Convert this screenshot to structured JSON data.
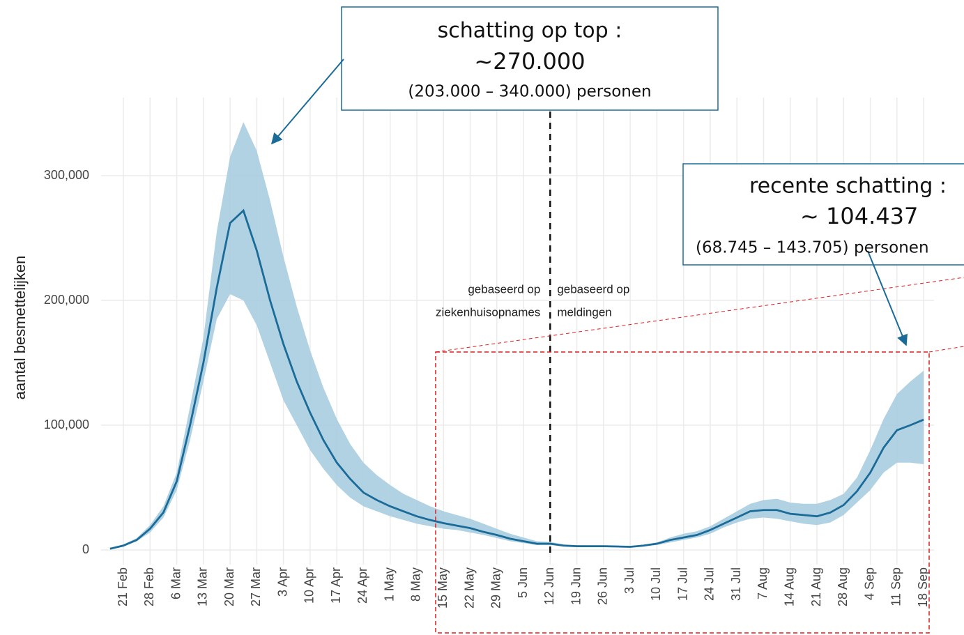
{
  "chart_data": {
    "type": "line",
    "ylabel": "aantal besmettelijken",
    "categories": [
      null,
      "21 Feb",
      null,
      "28 Feb",
      null,
      "6 Mar",
      null,
      "13 Mar",
      null,
      "20 Mar",
      null,
      "27 Mar",
      null,
      "3 Apr",
      null,
      "10 Apr",
      null,
      "17 Apr",
      null,
      "24 Apr",
      null,
      "1 May",
      null,
      "8 May",
      null,
      "15 May",
      null,
      "22 May",
      null,
      "29 May",
      null,
      "5 Jun",
      null,
      "12 Jun",
      null,
      "19 Jun",
      null,
      "26 Jun",
      null,
      "3 Jul",
      null,
      "10 Jul",
      null,
      "17 Jul",
      null,
      "24 Jul",
      null,
      "31 Jul",
      null,
      "7 Aug",
      null,
      "14 Aug",
      null,
      "21 Aug",
      null,
      "28 Aug",
      null,
      "4 Sep",
      null,
      "11 Sep",
      null,
      "18 Sep"
    ],
    "values": [
      1000,
      3500,
      8000,
      17000,
      30000,
      55000,
      100000,
      150000,
      210000,
      262000,
      272000,
      240000,
      200000,
      165000,
      135000,
      110000,
      88000,
      70000,
      57000,
      46000,
      40000,
      35000,
      31000,
      27000,
      24000,
      21500,
      19500,
      17500,
      14500,
      12000,
      9000,
      7000,
      5000,
      5000,
      3500,
      3000,
      3000,
      3000,
      2800,
      2500,
      3500,
      5000,
      8000,
      10000,
      12000,
      16000,
      21000,
      26000,
      31000,
      32000,
      32000,
      29000,
      28000,
      27000,
      30000,
      36000,
      47000,
      62000,
      82000,
      96000,
      100000,
      104437
    ],
    "lower": [
      800,
      3000,
      7000,
      14000,
      26000,
      48000,
      88000,
      135000,
      185000,
      205000,
      200000,
      180000,
      150000,
      120000,
      100000,
      80000,
      65000,
      52000,
      42000,
      35000,
      31000,
      27000,
      24000,
      21000,
      19000,
      17000,
      16000,
      14000,
      12000,
      9500,
      7000,
      5500,
      4000,
      4000,
      3000,
      2500,
      2500,
      2500,
      2400,
      2200,
      3000,
      4000,
      6000,
      8000,
      10000,
      13000,
      18000,
      22000,
      25000,
      26000,
      25000,
      23000,
      21000,
      20000,
      22000,
      28000,
      38000,
      48000,
      62000,
      70000,
      70000,
      68745
    ],
    "upper": [
      1200,
      4500,
      9500,
      20000,
      35000,
      62000,
      115000,
      170000,
      255000,
      315000,
      343000,
      320000,
      280000,
      235000,
      195000,
      160000,
      130000,
      105000,
      85000,
      70000,
      60000,
      52000,
      45000,
      40000,
      35000,
      31000,
      28000,
      25000,
      21000,
      17000,
      13000,
      10000,
      7000,
      6500,
      4500,
      3800,
      3600,
      3600,
      3400,
      3000,
      4200,
      6000,
      10000,
      13000,
      15000,
      19000,
      25000,
      31000,
      37000,
      40000,
      41000,
      38000,
      37000,
      37000,
      40000,
      45000,
      58000,
      80000,
      105000,
      125000,
      135000,
      143705
    ],
    "color": "#1a6b98",
    "band_color": "#a9cde0",
    "ylim": [
      0,
      350000
    ],
    "yticks": [
      0,
      {
        "value": 100000,
        "label": "100,000"
      },
      {
        "value": 200000,
        "label": "200,000"
      },
      {
        "value": 300000,
        "label": "300,000"
      }
    ],
    "grid": true,
    "split": {
      "category": "12 Jun",
      "left": [
        "gebaseerd op",
        "ziekenhuisopnames"
      ],
      "right": [
        "gebaseerd op",
        "meldingen"
      ]
    },
    "annotations": [
      {
        "lines": [
          "schatting op top :",
          "~270.000",
          "(203.000 – 340.000) personen"
        ]
      },
      {
        "lines": [
          "recente schatting :",
          "~ 104.437",
          "(68.745 – 143.705) personen"
        ]
      }
    ]
  }
}
